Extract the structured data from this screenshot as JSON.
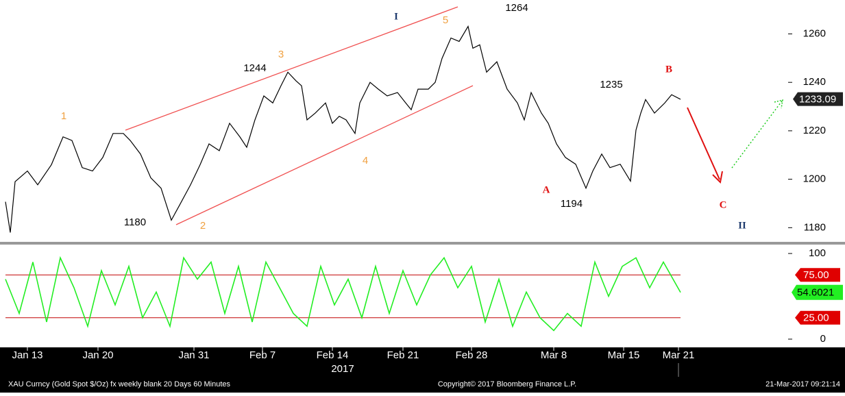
{
  "chart_data": [
    {
      "type": "line",
      "xlabel": "2017",
      "xlim": [
        0,
        1150
      ],
      "xticks": [
        {
          "value": 40,
          "label": "Jan 13"
        },
        {
          "value": 143,
          "label": "Jan 20"
        },
        {
          "value": 283,
          "label": "Jan 31"
        },
        {
          "value": 383,
          "label": "Feb 7"
        },
        {
          "value": 485,
          "label": "Feb 14"
        },
        {
          "value": 588,
          "label": "Feb 21"
        },
        {
          "value": 688,
          "label": "Feb 28"
        },
        {
          "value": 808,
          "label": "Mar 8"
        },
        {
          "value": 910,
          "label": "Mar 15"
        },
        {
          "value": 990,
          "label": "Mar 21"
        }
      ],
      "ylim": [
        1175,
        1274
      ],
      "yticks": [
        1180,
        1200,
        1220,
        1240,
        1260
      ],
      "series": [
        {
          "color": "#000000",
          "x": [
            8,
            15,
            22,
            40,
            55,
            75,
            92,
            105,
            120,
            135,
            150,
            165,
            180,
            190,
            205,
            220,
            235,
            250,
            262,
            278,
            292,
            305,
            320,
            335,
            350,
            360,
            372,
            385,
            398,
            410,
            420,
            432,
            440,
            448,
            460,
            475,
            485,
            495,
            505,
            518,
            525,
            540,
            552,
            565,
            580,
            592,
            600,
            610,
            625,
            635,
            645,
            658,
            670,
            683,
            690,
            700,
            710,
            725,
            740,
            755,
            765,
            775,
            790,
            800,
            812,
            825,
            840,
            855,
            865,
            878,
            890,
            905,
            920,
            928,
            935,
            942,
            955,
            970,
            980,
            993
          ],
          "values": [
            1190.7,
            1178,
            1199,
            1203.4,
            1197.7,
            1206,
            1217.5,
            1216,
            1204.8,
            1203.4,
            1209,
            1218.9,
            1218.9,
            1216,
            1210.4,
            1200.6,
            1196.3,
            1183.1,
            1189.3,
            1197.7,
            1206,
            1214.6,
            1211.8,
            1223.1,
            1217.5,
            1213.2,
            1224.5,
            1234.4,
            1231.5,
            1238.6,
            1244.2,
            1240.6,
            1238.6,
            1224.5,
            1227.3,
            1231.5,
            1223.1,
            1226,
            1224.5,
            1218.9,
            1231.5,
            1240,
            1237.2,
            1234.4,
            1235.8,
            1231.5,
            1228.7,
            1237.2,
            1237.2,
            1240,
            1249.9,
            1258.3,
            1256.9,
            1263.1,
            1254.1,
            1255.5,
            1244.2,
            1248.5,
            1237.2,
            1231.5,
            1224.5,
            1235.8,
            1227.3,
            1223.1,
            1214.6,
            1209,
            1206.2,
            1196.3,
            1203.4,
            1210.4,
            1204.8,
            1206.2,
            1199.2,
            1220.3,
            1227.3,
            1232.9,
            1227.3,
            1231.5,
            1234.9,
            1233
          ]
        }
      ],
      "last_value": 1233.09,
      "annotations": [
        "I",
        "5",
        "1264",
        "3",
        "1244",
        "1",
        "4",
        "1180",
        "2",
        "1235",
        "B",
        "A",
        "1194",
        "C",
        "II"
      ]
    },
    {
      "type": "line",
      "xlim": [
        0,
        1150
      ],
      "ylim": [
        -8,
        108
      ],
      "yticks": [
        0,
        100
      ],
      "levels": [
        {
          "value": 75,
          "label": "75.00"
        },
        {
          "value": 25,
          "label": "25.00"
        }
      ],
      "series": [
        {
          "color": "#22ee22",
          "x": [
            8,
            28,
            48,
            68,
            88,
            108,
            128,
            148,
            168,
            188,
            208,
            228,
            248,
            268,
            288,
            308,
            328,
            348,
            368,
            388,
            408,
            428,
            448,
            468,
            488,
            508,
            528,
            548,
            568,
            588,
            608,
            628,
            648,
            668,
            688,
            708,
            728,
            748,
            768,
            788,
            808,
            828,
            848,
            868,
            888,
            908,
            928,
            948,
            968,
            993
          ],
          "values": [
            70,
            30,
            90,
            20,
            95,
            60,
            15,
            80,
            40,
            85,
            25,
            55,
            15,
            95,
            70,
            90,
            30,
            85,
            20,
            90,
            60,
            30,
            15,
            85,
            40,
            70,
            25,
            85,
            30,
            80,
            40,
            75,
            95,
            60,
            85,
            20,
            70,
            15,
            55,
            25,
            10,
            30,
            15,
            90,
            50,
            85,
            95,
            60,
            90,
            54.6021
          ],
          "value_labels": [
            null,
            null,
            null,
            null,
            null,
            null,
            null,
            null,
            null,
            null,
            null,
            null,
            null,
            null,
            null,
            null,
            null,
            null,
            null,
            null,
            null,
            null,
            null,
            null,
            null,
            null,
            null,
            null,
            null,
            null,
            null,
            null,
            null,
            null,
            null,
            null,
            null,
            null,
            null,
            null,
            null,
            null,
            null,
            null,
            null,
            null,
            null,
            null,
            null,
            "54.6021"
          ]
        }
      ]
    }
  ],
  "footer": {
    "left": "XAU Curncy (Gold Spot   $/Oz) fx weekly blank 20 Days 60 Minutes",
    "center": "Copyright© 2017 Bloomberg Finance L.P.",
    "right": "21-Mar-2017 09:21:14"
  }
}
